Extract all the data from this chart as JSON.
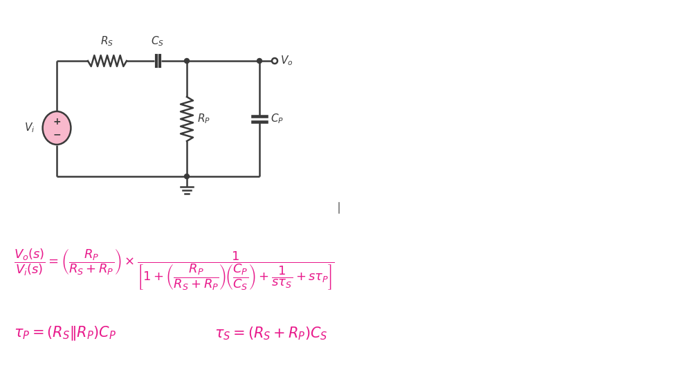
{
  "background_color": "#ffffff",
  "pink_color": "#e8198b",
  "circuit_color": "#3a3a3a",
  "fig_width": 9.78,
  "fig_height": 5.45,
  "dpi": 100
}
